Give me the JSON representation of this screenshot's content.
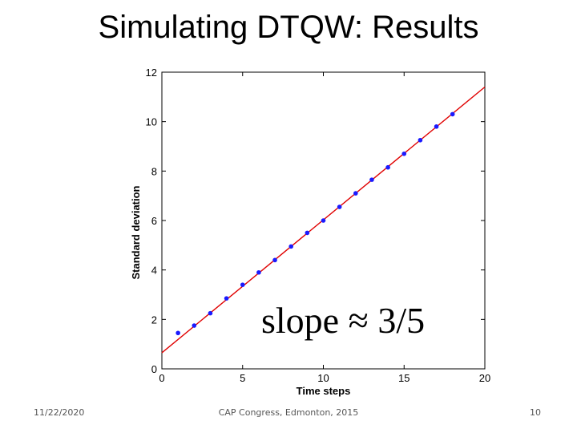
{
  "slide": {
    "title": "Simulating DTQW: Results",
    "footer_date": "11/22/2020",
    "footer_center": "CAP Congress, Edmonton, 2015",
    "page_number": "10"
  },
  "chart_data": {
    "type": "scatter",
    "xlabel": "Time steps",
    "ylabel": "Standard deviation",
    "xlim": [
      0,
      20
    ],
    "ylim": [
      0,
      12
    ],
    "xticks": [
      0,
      5,
      10,
      15,
      20
    ],
    "yticks": [
      0,
      2,
      4,
      6,
      8,
      10,
      12
    ],
    "annotation": "slope ≈ 3/5",
    "series": [
      {
        "type": "scatter",
        "color": "#1a1aff",
        "x": [
          1,
          2,
          3,
          4,
          5,
          6,
          7,
          8,
          9,
          10,
          11,
          12,
          13,
          14,
          15,
          16,
          17,
          18
        ],
        "y": [
          1.45,
          1.75,
          2.25,
          2.85,
          3.4,
          3.9,
          4.4,
          4.95,
          5.5,
          6.0,
          6.55,
          7.1,
          7.65,
          8.15,
          8.7,
          9.25,
          9.8,
          10.3
        ]
      },
      {
        "type": "line",
        "color": "#e00000",
        "x": [
          0,
          20
        ],
        "y": [
          0.65,
          11.4
        ]
      }
    ],
    "grid": false
  }
}
